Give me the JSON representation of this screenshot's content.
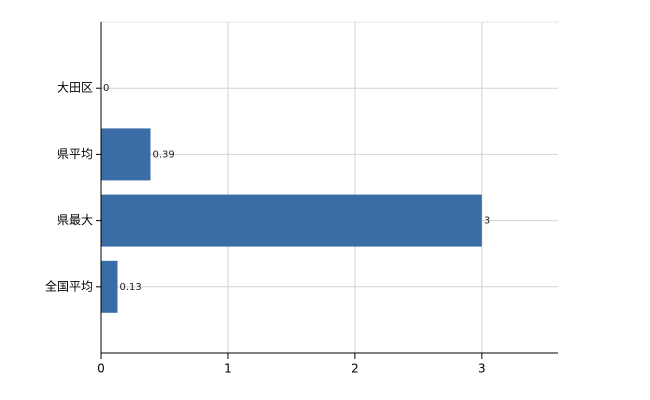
{
  "chart_data": {
    "type": "bar",
    "orientation": "horizontal",
    "categories": [
      "大田区",
      "県平均",
      "県最大",
      "全国平均"
    ],
    "values": [
      0,
      0.39,
      3,
      0.13
    ],
    "color": "#3a6da6",
    "xlim": [
      0,
      3.6
    ],
    "xticks": [
      0,
      1,
      2,
      3
    ],
    "grid": true
  }
}
